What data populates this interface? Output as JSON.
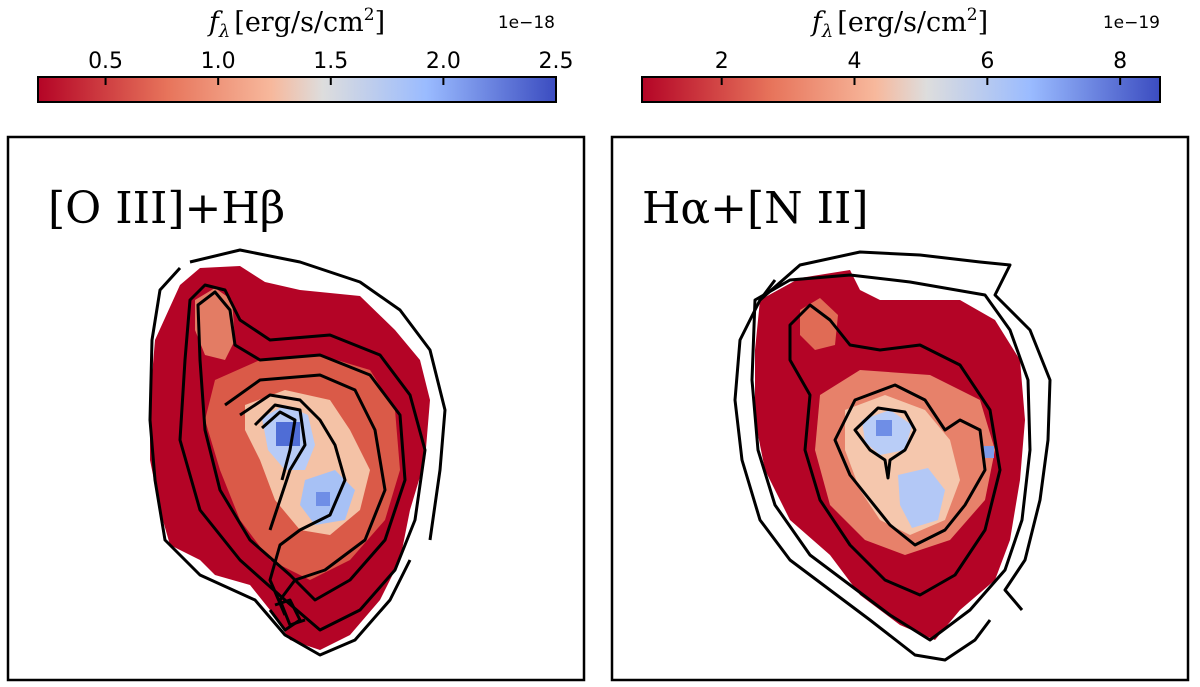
{
  "chart_data": [
    {
      "type": "heatmap",
      "panel_label": "[O III]+Hβ",
      "colorbar": {
        "label": "f_λ [erg/s/cm²]",
        "label_parts": {
          "symbol": "f",
          "subscript": "λ",
          "units": "[erg/s/cm",
          "power": "2",
          "close": "]"
        },
        "offset_text": "1e−18",
        "ticks": [
          "0.5",
          "1.0",
          "1.5",
          "2.0",
          "2.5"
        ],
        "tick_values": [
          0.5,
          1.0,
          1.5,
          2.0,
          2.5
        ],
        "vmin": 0.2,
        "vmax": 2.5,
        "colormap": "coolwarm_r",
        "low_color": "#b40426",
        "mid_color": "#dddddd",
        "high_color": "#3b4cc0"
      },
      "description": "Emission-line flux map with black flux contours"
    },
    {
      "type": "heatmap",
      "panel_label": "Hα+[N II]",
      "colorbar": {
        "label": "f_λ [erg/s/cm²]",
        "label_parts": {
          "symbol": "f",
          "subscript": "λ",
          "units": "[erg/s/cm",
          "power": "2",
          "close": "]"
        },
        "offset_text": "1e−19",
        "ticks": [
          "2",
          "4",
          "6",
          "8"
        ],
        "tick_values": [
          2,
          4,
          6,
          8
        ],
        "vmin": 0.8,
        "vmax": 8.6,
        "colormap": "coolwarm_r",
        "low_color": "#b40426",
        "mid_color": "#dddddd",
        "high_color": "#3b4cc0"
      },
      "description": "Emission-line flux map with black flux contours"
    }
  ]
}
